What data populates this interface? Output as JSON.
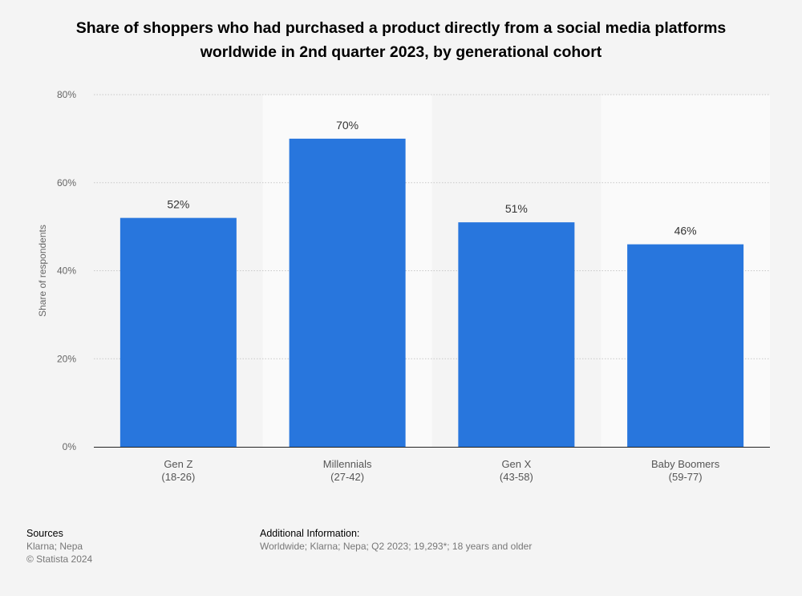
{
  "chart_data": {
    "type": "bar",
    "title": "Share of shoppers who had purchased a product directly from a social media platforms worldwide in 2nd quarter 2023, by generational cohort",
    "xlabel": "",
    "ylabel": "Share of respondents",
    "categories": [
      {
        "line1": "Gen Z",
        "line2": "(18-26)"
      },
      {
        "line1": "Millennials",
        "line2": "(27-42)"
      },
      {
        "line1": "Gen X",
        "line2": "(43-58)"
      },
      {
        "line1": "Baby Boomers",
        "line2": "(59-77)"
      }
    ],
    "values": [
      52,
      70,
      51,
      46
    ],
    "value_labels": [
      "52%",
      "70%",
      "51%",
      "46%"
    ],
    "ylim": [
      0,
      80
    ],
    "yticks": [
      0,
      20,
      40,
      60,
      80
    ],
    "ytick_labels": [
      "0%",
      "20%",
      "40%",
      "60%",
      "80%"
    ],
    "grid": true,
    "colors": {
      "bar": "#2876dd",
      "band": "#fafafa",
      "background": "#f4f4f4"
    }
  },
  "footer": {
    "sources_heading": "Sources",
    "sources": "Klarna; Nepa",
    "copyright": "© Statista 2024",
    "additional_heading": "Additional Information:",
    "additional": "Worldwide; Klarna; Nepa; Q2 2023; 19,293*; 18 years and older"
  }
}
